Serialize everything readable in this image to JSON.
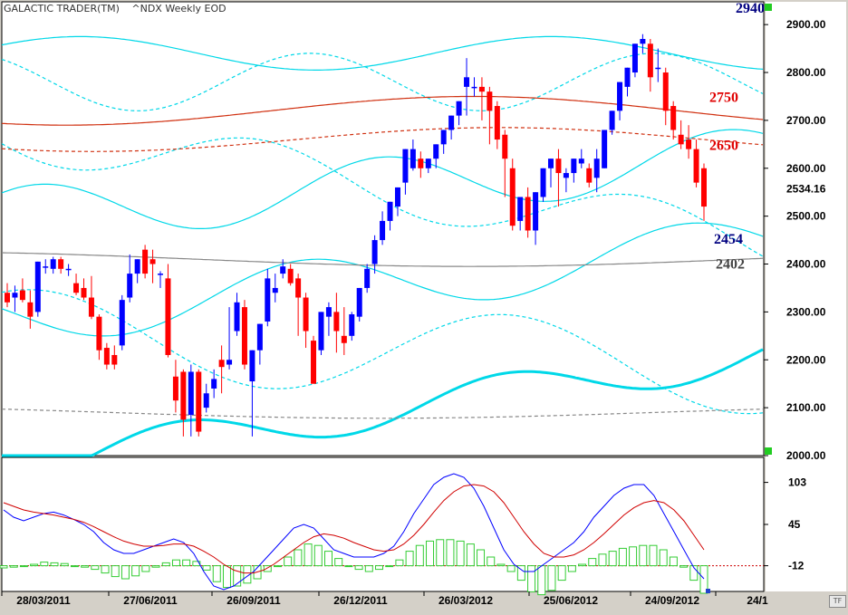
{
  "header": {
    "app": "GALACTIC TRADER(TM)",
    "symbol": "^NDX Weekly EOD"
  },
  "footer": {
    "tf_button": "TF"
  },
  "colors": {
    "up": "#0000ff",
    "down": "#ff0000",
    "cyan": "#00d8e8",
    "orange": "#e04010",
    "gray": "#888888",
    "histogram": "#33cc33",
    "blue_line": "#0000ff",
    "red_line": "#d00000"
  },
  "chart_data": [
    {
      "type": "candlestick",
      "title": "^NDX Weekly EOD",
      "ylim": [
        2000,
        2940
      ],
      "y_ticks": [
        "2000.00",
        "2100.00",
        "2200.00",
        "2300.00",
        "2400.00",
        "2500.00",
        "2600.00",
        "2700.00",
        "2800.00",
        "2900.00"
      ],
      "x_labels": [
        "28/03/2011",
        "27/06/2011",
        "26/09/2011",
        "26/12/2011",
        "26/03/2012",
        "25/06/2012",
        "24/09/2012",
        "24/1"
      ],
      "last_price": "2534.16",
      "level_labels": [
        {
          "text": "2940",
          "value": 2940,
          "color": "#000080"
        },
        {
          "text": "2750",
          "value": 2750,
          "color": "#e00000"
        },
        {
          "text": "2650",
          "value": 2650,
          "color": "#e00000"
        },
        {
          "text": "2454",
          "value": 2454,
          "color": "#000080"
        },
        {
          "text": "2402",
          "value": 2402,
          "color": "#444444"
        }
      ],
      "candles": [
        [
          2340,
          2360,
          2320,
          2310
        ],
        [
          2330,
          2355,
          2340,
          2300
        ],
        [
          2345,
          2370,
          2325,
          2320
        ],
        [
          2320,
          2345,
          2290,
          2265
        ],
        [
          2300,
          2395,
          2405,
          2290
        ],
        [
          2395,
          2410,
          2395,
          2380
        ],
        [
          2390,
          2415,
          2410,
          2380
        ],
        [
          2410,
          2415,
          2390,
          2380
        ],
        [
          2390,
          2400,
          2390,
          2375
        ],
        [
          2360,
          2380,
          2340,
          2335
        ],
        [
          2350,
          2370,
          2330,
          2325
        ],
        [
          2330,
          2375,
          2290,
          2285
        ],
        [
          2290,
          2295,
          2220,
          2200
        ],
        [
          2225,
          2235,
          2190,
          2180
        ],
        [
          2210,
          2230,
          2190,
          2180
        ],
        [
          2230,
          2335,
          2325,
          2220
        ],
        [
          2330,
          2420,
          2380,
          2320
        ],
        [
          2380,
          2400,
          2410,
          2360
        ],
        [
          2430,
          2440,
          2380,
          2370
        ],
        [
          2410,
          2430,
          2400,
          2360
        ],
        [
          2380,
          2385,
          2380,
          2350
        ],
        [
          2370,
          2400,
          2210,
          2205
        ],
        [
          2165,
          2200,
          2115,
          2090
        ],
        [
          2175,
          2180,
          2075,
          2040
        ],
        [
          2085,
          2190,
          2175,
          2040
        ],
        [
          2175,
          2180,
          2050,
          2040
        ],
        [
          2100,
          2150,
          2130,
          2090
        ],
        [
          2140,
          2180,
          2160,
          2120
        ],
        [
          2200,
          2230,
          2185,
          2130
        ],
        [
          2190,
          2310,
          2200,
          2180
        ],
        [
          2260,
          2340,
          2320,
          2250
        ],
        [
          2310,
          2325,
          2190,
          2180
        ],
        [
          2155,
          2210,
          2220,
          2040
        ],
        [
          2220,
          2230,
          2275,
          2190
        ],
        [
          2280,
          2390,
          2370,
          2270
        ],
        [
          2340,
          2380,
          2350,
          2320
        ],
        [
          2380,
          2410,
          2395,
          2370
        ],
        [
          2390,
          2400,
          2360,
          2355
        ],
        [
          2370,
          2380,
          2330,
          2250
        ],
        [
          2330,
          2340,
          2260,
          2225
        ],
        [
          2240,
          2250,
          2150,
          2150
        ],
        [
          2220,
          2290,
          2300,
          2210
        ],
        [
          2290,
          2320,
          2310,
          2250
        ],
        [
          2300,
          2340,
          2260,
          2215
        ],
        [
          2250,
          2310,
          2235,
          2210
        ],
        [
          2250,
          2300,
          2295,
          2240
        ],
        [
          2290,
          2340,
          2350,
          2280
        ],
        [
          2350,
          2400,
          2390,
          2340
        ],
        [
          2400,
          2460,
          2450,
          2380
        ],
        [
          2450,
          2510,
          2490,
          2440
        ],
        [
          2490,
          2510,
          2530,
          2470
        ],
        [
          2520,
          2545,
          2560,
          2500
        ],
        [
          2570,
          2600,
          2640,
          2545
        ],
        [
          2600,
          2660,
          2640,
          2595
        ],
        [
          2620,
          2635,
          2600,
          2580
        ],
        [
          2600,
          2620,
          2620,
          2590
        ],
        [
          2620,
          2630,
          2650,
          2600
        ],
        [
          2650,
          2660,
          2680,
          2630
        ],
        [
          2680,
          2690,
          2710,
          2660
        ],
        [
          2710,
          2720,
          2740,
          2690
        ],
        [
          2770,
          2830,
          2790,
          2710
        ],
        [
          2770,
          2790,
          2770,
          2750
        ],
        [
          2770,
          2790,
          2760,
          2700
        ],
        [
          2760,
          2770,
          2720,
          2650
        ],
        [
          2730,
          2740,
          2660,
          2640
        ],
        [
          2670,
          2680,
          2620,
          2540
        ],
        [
          2600,
          2620,
          2480,
          2470
        ],
        [
          2490,
          2510,
          2540,
          2470
        ],
        [
          2540,
          2560,
          2470,
          2455
        ],
        [
          2470,
          2510,
          2550,
          2440
        ],
        [
          2540,
          2560,
          2600,
          2530
        ],
        [
          2600,
          2620,
          2620,
          2560
        ],
        [
          2620,
          2640,
          2590,
          2520
        ],
        [
          2580,
          2600,
          2590,
          2550
        ],
        [
          2590,
          2610,
          2620,
          2570
        ],
        [
          2610,
          2640,
          2620,
          2600
        ],
        [
          2600,
          2610,
          2570,
          2560
        ],
        [
          2580,
          2640,
          2620,
          2550
        ],
        [
          2600,
          2640,
          2680,
          2600
        ],
        [
          2680,
          2700,
          2720,
          2670
        ],
        [
          2720,
          2760,
          2780,
          2700
        ],
        [
          2770,
          2790,
          2810,
          2750
        ],
        [
          2800,
          2840,
          2860,
          2790
        ],
        [
          2860,
          2880,
          2870,
          2840
        ],
        [
          2860,
          2870,
          2790,
          2760
        ],
        [
          2810,
          2850,
          2810,
          2780
        ],
        [
          2800,
          2810,
          2720,
          2690
        ],
        [
          2730,
          2740,
          2680,
          2660
        ],
        [
          2670,
          2700,
          2650,
          2640
        ],
        [
          2660,
          2690,
          2640,
          2620
        ],
        [
          2640,
          2660,
          2570,
          2560
        ],
        [
          2600,
          2610,
          2520,
          2490
        ]
      ],
      "up_color": "#0000ff",
      "down_color": "#ff0000"
    },
    {
      "type": "oscillator",
      "y_ticks": [
        "103",
        "45",
        "-12"
      ],
      "zero_line": -12,
      "series": [
        {
          "values": [
            65,
            55,
            50,
            55,
            60,
            62,
            58,
            52,
            45,
            35,
            20,
            10,
            5,
            5,
            10,
            15,
            20,
            25,
            20,
            5,
            -20,
            -40,
            -45,
            -40,
            -30,
            -20,
            -5,
            10,
            25,
            40,
            45,
            40,
            25,
            10,
            5,
            0,
            0,
            0,
            5,
            15,
            35,
            60,
            80,
            100,
            110,
            115,
            110,
            95,
            70,
            40,
            10,
            -10,
            -20,
            -20,
            -10,
            0,
            10,
            20,
            35,
            55,
            70,
            85,
            95,
            100,
            100,
            85,
            60,
            35,
            10,
            -15,
            -30
          ]
        },
        {
          "values": [
            75,
            70,
            65,
            62,
            60,
            58,
            55,
            52,
            48,
            42,
            35,
            28,
            22,
            18,
            15,
            15,
            16,
            18,
            18,
            15,
            8,
            0,
            -10,
            -18,
            -22,
            -22,
            -18,
            -10,
            0,
            10,
            20,
            28,
            32,
            30,
            26,
            20,
            15,
            10,
            8,
            10,
            18,
            30,
            45,
            62,
            78,
            90,
            98,
            100,
            98,
            90,
            75,
            55,
            35,
            18,
            5,
            0,
            0,
            3,
            10,
            20,
            32,
            45,
            58,
            68,
            75,
            78,
            75,
            65,
            50,
            30,
            10
          ]
        },
        {
          "values": [
            -3,
            -2,
            -1,
            2,
            5,
            4,
            3,
            0,
            -2,
            -5,
            -10,
            -15,
            -18,
            -14,
            -8,
            -2,
            4,
            8,
            8,
            6,
            -6,
            -22,
            -30,
            -28,
            -24,
            -18,
            -8,
            0,
            12,
            22,
            30,
            28,
            20,
            10,
            0,
            -5,
            -8,
            -5,
            0,
            8,
            20,
            28,
            34,
            36,
            36,
            34,
            30,
            22,
            12,
            2,
            -8,
            -20,
            -36,
            -40,
            -34,
            -20,
            -8,
            2,
            10,
            16,
            20,
            24,
            26,
            28,
            28,
            22,
            12,
            -2,
            -20,
            -38
          ]
        }
      ],
      "x_labels": [
        "28/03/2011",
        "27/06/2011",
        "26/09/2011",
        "26/12/2011",
        "26/03/2012",
        "25/06/2012",
        "24/09/2012",
        "24/1"
      ]
    }
  ]
}
